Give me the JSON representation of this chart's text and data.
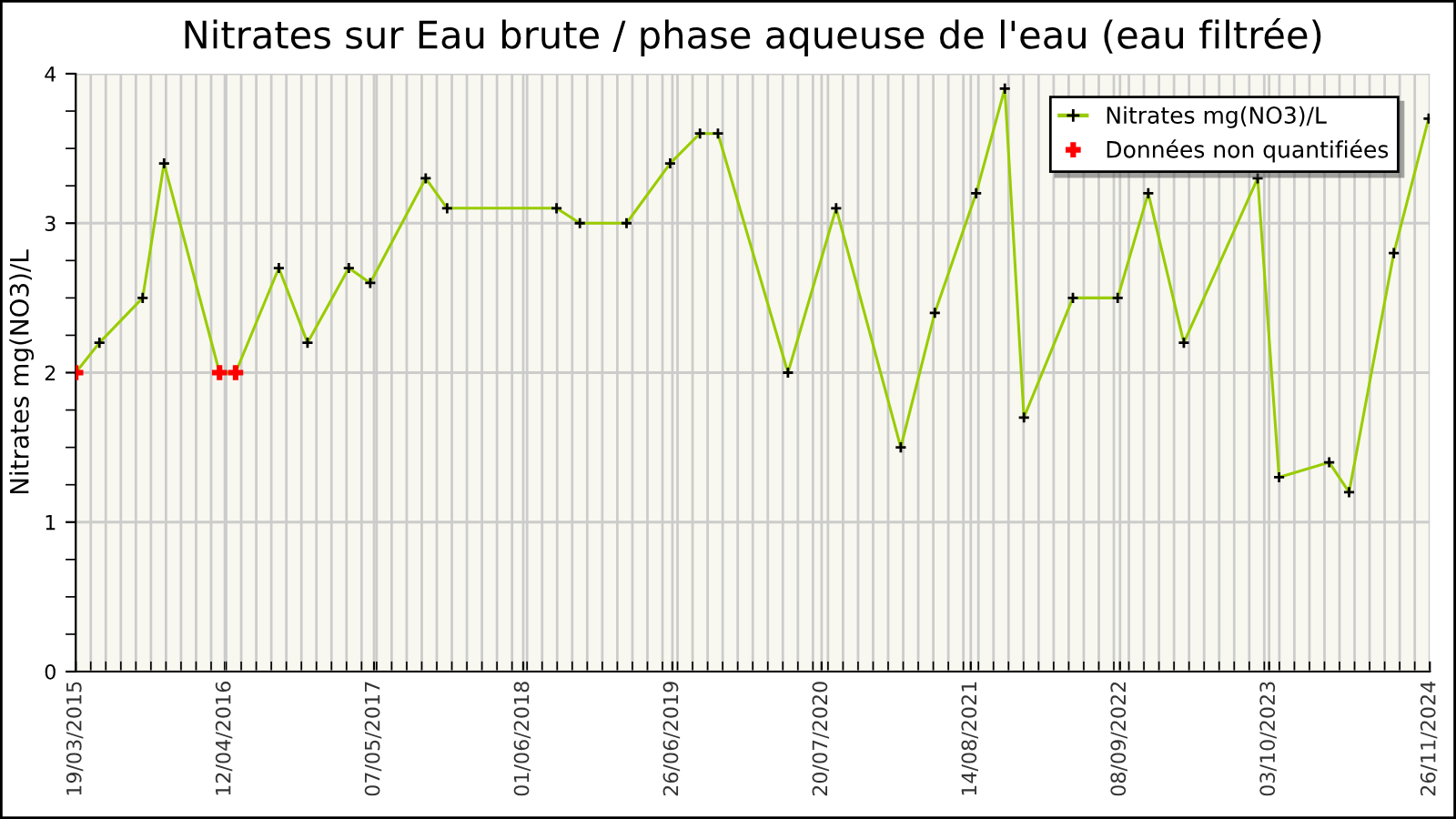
{
  "chart_data": {
    "type": "line",
    "title": "Nitrates sur Eau brute / phase aqueuse de l'eau (eau filtrée)",
    "ylabel": "Nitrates mg(NO3)/L",
    "series": [
      {
        "name": "Nitrates mg(NO3)/L",
        "color": "#99cc00",
        "marker": "cross",
        "x": [
          "2015-03-19",
          "2015-05-20",
          "2015-09-10",
          "2015-11-05",
          "2016-03-29",
          "2016-05-10",
          "2016-08-31",
          "2016-11-14",
          "2017-03-02",
          "2017-04-27",
          "2017-09-19",
          "2017-11-14",
          "2018-08-27",
          "2018-10-27",
          "2019-02-26",
          "2019-06-20",
          "2019-09-06",
          "2019-10-23",
          "2020-04-23",
          "2020-08-27",
          "2021-02-12",
          "2021-05-12",
          "2021-08-28",
          "2021-11-11",
          "2021-12-31",
          "2022-05-08",
          "2022-09-02",
          "2022-11-21",
          "2023-02-22",
          "2023-09-03",
          "2023-10-29",
          "2024-03-08",
          "2024-04-29",
          "2024-08-24",
          "2024-11-23"
        ],
        "values": [
          2.0,
          2.2,
          2.5,
          3.4,
          2.0,
          2.0,
          2.7,
          2.2,
          2.7,
          2.6,
          3.3,
          3.1,
          3.1,
          3.0,
          3.0,
          3.4,
          3.6,
          3.6,
          2.0,
          3.1,
          1.5,
          2.4,
          3.2,
          3.9,
          1.7,
          2.5,
          2.5,
          3.2,
          2.2,
          3.3,
          1.3,
          1.4,
          1.2,
          2.8,
          3.7
        ]
      },
      {
        "name": "Données non quantifiées",
        "type": "scatter",
        "color": "#ff0000",
        "marker": "cross",
        "x": [
          "2015-03-19",
          "2016-03-29",
          "2016-05-10"
        ],
        "values": [
          2.0,
          2.0,
          2.0
        ]
      }
    ],
    "xlim": [
      "2015-03-19",
      "2024-11-26"
    ],
    "xticks": [
      {
        "value": "2015-03-19",
        "label": "19/03/2015"
      },
      {
        "value": "2016-04-12",
        "label": "12/04/2016"
      },
      {
        "value": "2017-05-07",
        "label": "07/05/2017"
      },
      {
        "value": "2018-06-01",
        "label": "01/06/2018"
      },
      {
        "value": "2019-06-26",
        "label": "26/06/2019"
      },
      {
        "value": "2020-07-20",
        "label": "20/07/2020"
      },
      {
        "value": "2021-08-14",
        "label": "14/08/2021"
      },
      {
        "value": "2022-09-08",
        "label": "08/09/2022"
      },
      {
        "value": "2023-10-03",
        "label": "03/10/2023"
      },
      {
        "value": "2024-11-26",
        "label": "26/11/2024"
      }
    ],
    "ylim": [
      0,
      4
    ],
    "yticks": [
      0,
      1,
      2,
      3,
      4
    ],
    "grid": true,
    "legend": "top right"
  }
}
